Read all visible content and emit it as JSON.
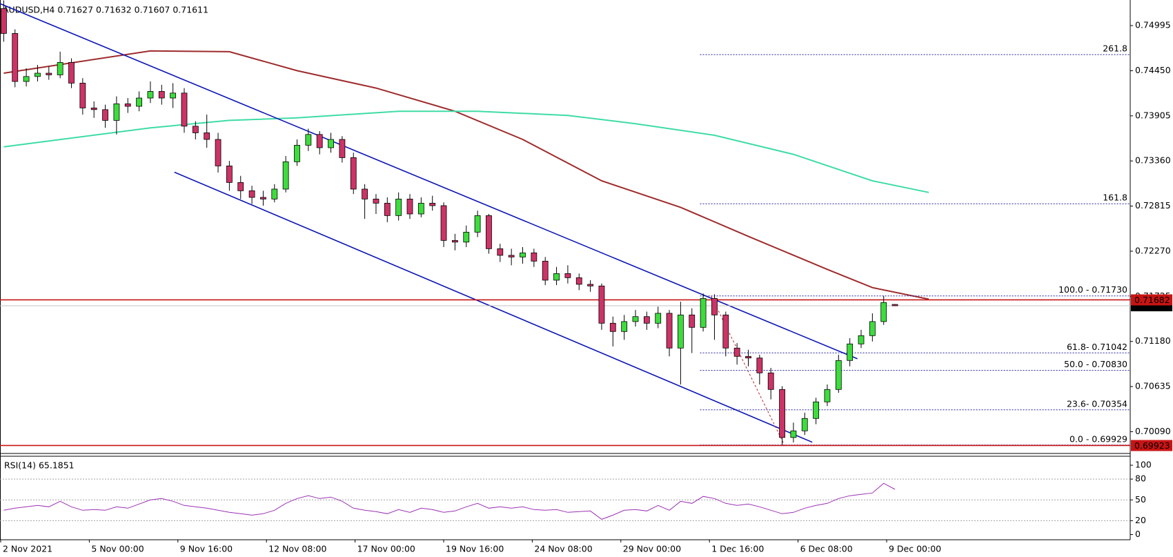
{
  "chart_data": {
    "type": "candlestick",
    "title": "AUDUSD,H4  0.71627 0.71632 0.71607 0.71611",
    "up_color": "#3ddc3d",
    "down_color": "#cc3366",
    "ylim": [
      0.69827,
      0.75304
    ],
    "yticks": [
      0.74995,
      {
        "value": 0.7445,
        "label": "0.74450"
      },
      0.73905,
      {
        "value": 0.7336,
        "label": "0.73360"
      },
      0.72815,
      {
        "value": 0.7227,
        "label": "0.72270"
      },
      0.71725,
      {
        "value": 0.7118,
        "label": "0.71180"
      },
      0.70635,
      {
        "value": 0.7009,
        "label": "0.70090"
      }
    ],
    "time_labels": [
      "2 Nov 2021",
      "5 Nov 00:00",
      "9 Nov 16:00",
      "12 Nov 08:00",
      "17 Nov 00:00",
      "19 Nov 16:00",
      "24 Nov 08:00",
      "29 Nov 00:00",
      "1 Dec 16:00",
      "6 Dec 08:00",
      "9 Dec 00:00"
    ],
    "candles": [
      [
        0.752,
        0.753,
        0.748,
        0.749
      ],
      [
        0.749,
        0.7495,
        0.7425,
        0.7432
      ],
      [
        0.7432,
        0.7448,
        0.7426,
        0.7438
      ],
      [
        0.7438,
        0.7452,
        0.7432,
        0.7442
      ],
      [
        0.7442,
        0.745,
        0.7434,
        0.744
      ],
      [
        0.744,
        0.7468,
        0.7436,
        0.7455
      ],
      [
        0.7455,
        0.746,
        0.7424,
        0.743
      ],
      [
        0.743,
        0.7436,
        0.7392,
        0.74
      ],
      [
        0.74,
        0.7408,
        0.7388,
        0.7398
      ],
      [
        0.7398,
        0.7404,
        0.7376,
        0.7385
      ],
      [
        0.7385,
        0.7414,
        0.7368,
        0.7405
      ],
      [
        0.7405,
        0.7412,
        0.7394,
        0.7402
      ],
      [
        0.7402,
        0.742,
        0.7396,
        0.7412
      ],
      [
        0.7412,
        0.7432,
        0.7406,
        0.742
      ],
      [
        0.742,
        0.7428,
        0.7404,
        0.7412
      ],
      [
        0.7412,
        0.743,
        0.74,
        0.7418
      ],
      [
        0.7418,
        0.7424,
        0.737,
        0.7378
      ],
      [
        0.7378,
        0.7384,
        0.7362,
        0.737
      ],
      [
        0.737,
        0.7392,
        0.7352,
        0.7362
      ],
      [
        0.7362,
        0.737,
        0.7322,
        0.733
      ],
      [
        0.733,
        0.7336,
        0.73,
        0.731
      ],
      [
        0.731,
        0.7318,
        0.729,
        0.73
      ],
      [
        0.73,
        0.7306,
        0.7284,
        0.7292
      ],
      [
        0.7292,
        0.73,
        0.7282,
        0.729
      ],
      [
        0.729,
        0.7308,
        0.7286,
        0.7302
      ],
      [
        0.7302,
        0.7342,
        0.7298,
        0.7335
      ],
      [
        0.7335,
        0.7362,
        0.733,
        0.7355
      ],
      [
        0.7355,
        0.7375,
        0.7348,
        0.7368
      ],
      [
        0.7368,
        0.7372,
        0.7344,
        0.7352
      ],
      [
        0.7352,
        0.737,
        0.7346,
        0.7362
      ],
      [
        0.7362,
        0.7366,
        0.7334,
        0.734
      ],
      [
        0.734,
        0.7346,
        0.7296,
        0.7302
      ],
      [
        0.7302,
        0.7308,
        0.7266,
        0.729
      ],
      [
        0.729,
        0.7296,
        0.7272,
        0.7285
      ],
      [
        0.7285,
        0.7292,
        0.7262,
        0.727
      ],
      [
        0.727,
        0.7298,
        0.7264,
        0.729
      ],
      [
        0.729,
        0.7296,
        0.7266,
        0.7272
      ],
      [
        0.7272,
        0.7292,
        0.7268,
        0.7285
      ],
      [
        0.7285,
        0.7294,
        0.7276,
        0.7282
      ],
      [
        0.7282,
        0.7286,
        0.7232,
        0.724
      ],
      [
        0.724,
        0.7248,
        0.7228,
        0.7238
      ],
      [
        0.7238,
        0.7258,
        0.7232,
        0.725
      ],
      [
        0.725,
        0.7276,
        0.7244,
        0.727
      ],
      [
        0.727,
        0.7272,
        0.7224,
        0.723
      ],
      [
        0.723,
        0.7236,
        0.7214,
        0.7222
      ],
      [
        0.7222,
        0.723,
        0.721,
        0.722
      ],
      [
        0.722,
        0.7232,
        0.7212,
        0.7225
      ],
      [
        0.7225,
        0.723,
        0.7208,
        0.7215
      ],
      [
        0.7215,
        0.722,
        0.7186,
        0.7192
      ],
      [
        0.7192,
        0.7208,
        0.7186,
        0.72
      ],
      [
        0.72,
        0.721,
        0.7188,
        0.7195
      ],
      [
        0.7195,
        0.72,
        0.718,
        0.7187
      ],
      [
        0.7187,
        0.7192,
        0.7178,
        0.7185
      ],
      [
        0.7185,
        0.7188,
        0.7132,
        0.714
      ],
      [
        0.714,
        0.7148,
        0.7112,
        0.713
      ],
      [
        0.713,
        0.715,
        0.712,
        0.7142
      ],
      [
        0.7142,
        0.7156,
        0.7136,
        0.7148
      ],
      [
        0.7148,
        0.7154,
        0.7132,
        0.714
      ],
      [
        0.714,
        0.716,
        0.7134,
        0.7152
      ],
      [
        0.7152,
        0.7156,
        0.71,
        0.711
      ],
      [
        0.711,
        0.7166,
        0.7066,
        0.715
      ],
      [
        0.715,
        0.7158,
        0.7104,
        0.7135
      ],
      [
        0.7135,
        0.7176,
        0.713,
        0.717
      ],
      [
        0.717,
        0.7175,
        0.712,
        0.715
      ],
      [
        0.715,
        0.7154,
        0.71,
        0.711
      ],
      [
        0.711,
        0.7116,
        0.709,
        0.71
      ],
      [
        0.71,
        0.7108,
        0.7088,
        0.7098
      ],
      [
        0.7098,
        0.7102,
        0.7066,
        0.708
      ],
      [
        0.708,
        0.7086,
        0.7048,
        0.706
      ],
      [
        0.706,
        0.7064,
        0.69929,
        0.7002
      ],
      [
        0.7002,
        0.702,
        0.6996,
        0.701
      ],
      [
        0.701,
        0.7032,
        0.7005,
        0.7025
      ],
      [
        0.7025,
        0.705,
        0.7018,
        0.7045
      ],
      [
        0.7045,
        0.7066,
        0.704,
        0.706
      ],
      [
        0.706,
        0.7102,
        0.7056,
        0.7095
      ],
      [
        0.7095,
        0.7122,
        0.7088,
        0.7115
      ],
      [
        0.7115,
        0.7132,
        0.711,
        0.7125
      ],
      [
        0.7125,
        0.7152,
        0.7118,
        0.7142
      ],
      [
        0.7142,
        0.7173,
        0.7138,
        0.7165
      ],
      [
        0.71627,
        0.71632,
        0.71607,
        0.71611
      ]
    ],
    "moving_averages": [
      {
        "color": "#9e2a2b",
        "x": [
          0,
          13,
          20,
          26,
          33,
          40,
          46,
          53,
          60,
          66,
          73,
          77,
          82
        ],
        "values": [
          0.7442,
          0.7469,
          0.7468,
          0.7445,
          0.7424,
          0.7396,
          0.7362,
          0.7312,
          0.728,
          0.7245,
          0.7205,
          0.7183,
          0.7169
        ]
      },
      {
        "color": "#3ddca4",
        "x": [
          0,
          13,
          20,
          26,
          35,
          42,
          50,
          56,
          63,
          70,
          77,
          82
        ],
        "values": [
          0.7353,
          0.7376,
          0.7385,
          0.7388,
          0.7396,
          0.7396,
          0.7391,
          0.7381,
          0.7367,
          0.7344,
          0.7312,
          0.7298
        ]
      }
    ],
    "trendlines": [
      {
        "color": "#0a14b4",
        "x": [
          -0.33,
          75.67
        ],
        "values": [
          0.7526,
          0.70971
        ]
      },
      {
        "color": "#0a14b4",
        "x": [
          15.13,
          71.67
        ],
        "values": [
          0.73224,
          0.69963
        ]
      }
    ],
    "fib": {
      "color": "#1e1e9c",
      "x": [
        62.7,
        69.2
      ],
      "levels": [
        {
          "value": 0.74644,
          "label": "261.8"
        },
        {
          "value": 0.72843,
          "label": "161.8"
        },
        {
          "value": 0.7173,
          "label": "100.0 - 0.71730"
        },
        {
          "value": 0.71042,
          "label": "61.8- 0.71042"
        },
        {
          "value": 0.7083,
          "label": "50.0 - 0.70830"
        },
        {
          "value": 0.70354,
          "label": "23.6- 0.70354"
        },
        {
          "value": 0.69929,
          "label": "0.0 - 0.69929"
        }
      ]
    },
    "current_price": {
      "value": 0.71611,
      "color": "#000000"
    },
    "hlines": [
      {
        "value": 0.71682,
        "color": "#c81414"
      },
      {
        "value": 0.69923,
        "color": "#c81414"
      }
    ],
    "rsi": {
      "title": "RSI(14) 65.1851",
      "color": "#9b30b4",
      "ylim": [
        -7.5,
        113
      ],
      "yticks": [
        100,
        80,
        50,
        20,
        0
      ],
      "levels": [
        80,
        50,
        20
      ],
      "values": [
        35,
        38,
        40,
        42,
        40,
        48,
        40,
        35,
        36,
        35,
        40,
        38,
        44,
        50,
        52,
        48,
        42,
        40,
        38,
        35,
        32,
        30,
        28,
        30,
        35,
        45,
        52,
        56,
        52,
        54,
        48,
        38,
        35,
        33,
        30,
        36,
        32,
        38,
        36,
        32,
        34,
        40,
        45,
        38,
        40,
        38,
        40,
        36,
        35,
        36,
        32,
        33,
        34,
        22,
        28,
        35,
        36,
        34,
        42,
        35,
        48,
        45,
        55,
        52,
        45,
        42,
        44,
        40,
        35,
        30,
        32,
        38,
        42,
        45,
        52,
        56,
        58,
        60,
        74,
        65.1851
      ]
    }
  }
}
